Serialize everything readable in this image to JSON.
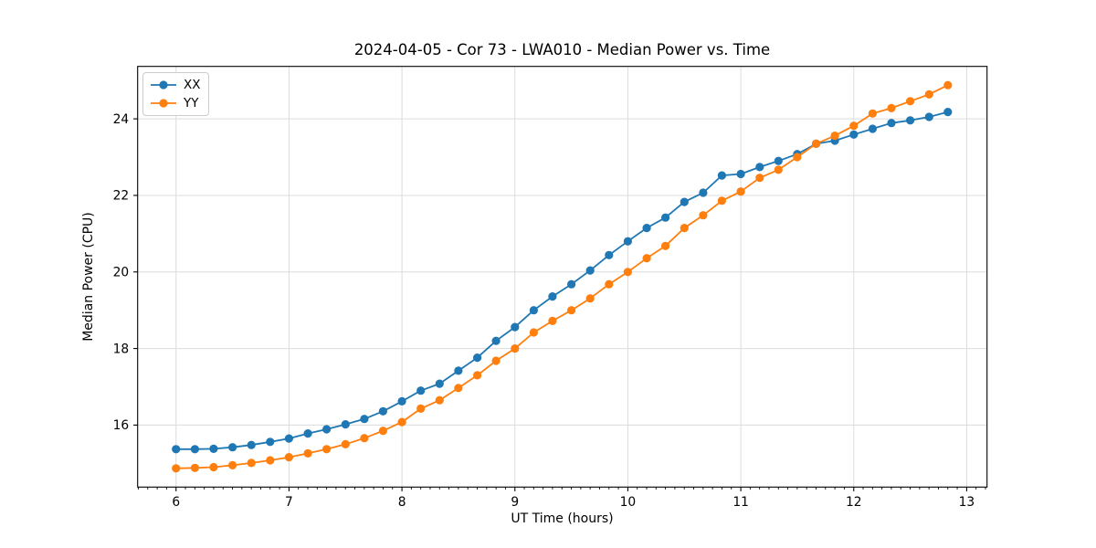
{
  "chart_data": {
    "type": "line",
    "title": "2024-04-05 - Cor 73 - LWA010 - Median Power vs. Time",
    "xlabel": "UT Time (hours)",
    "ylabel": "Median Power (CPU)",
    "xlim": [
      5.66,
      13.18
    ],
    "ylim": [
      14.38,
      25.37
    ],
    "x_ticks": [
      6,
      7,
      8,
      9,
      10,
      11,
      12,
      13
    ],
    "y_ticks": [
      16,
      18,
      20,
      22,
      24
    ],
    "x_minor_tick_step": 0.08333,
    "grid": true,
    "grid_color": "#dcdcdc",
    "spine_color": "#000000",
    "legend_position": "upper-left",
    "x": [
      6.0,
      6.167,
      6.333,
      6.5,
      6.667,
      6.833,
      7.0,
      7.167,
      7.333,
      7.5,
      7.667,
      7.833,
      8.0,
      8.167,
      8.333,
      8.5,
      8.667,
      8.833,
      9.0,
      9.167,
      9.333,
      9.5,
      9.667,
      9.833,
      10.0,
      10.167,
      10.333,
      10.5,
      10.667,
      10.833,
      11.0,
      11.167,
      11.333,
      11.5,
      11.667,
      11.833,
      12.0,
      12.167,
      12.333,
      12.5,
      12.667,
      12.833
    ],
    "series": [
      {
        "name": "XX",
        "color": "#1f77b4",
        "values": [
          15.37,
          15.37,
          15.38,
          15.42,
          15.48,
          15.56,
          15.65,
          15.78,
          15.89,
          16.02,
          16.16,
          16.36,
          16.62,
          16.9,
          17.08,
          17.42,
          17.76,
          18.2,
          18.56,
          19.0,
          19.36,
          19.68,
          20.04,
          20.44,
          20.8,
          21.15,
          21.42,
          21.83,
          22.07,
          22.52,
          22.56,
          22.74,
          22.9,
          23.08,
          23.35,
          23.43,
          23.59,
          23.74,
          23.89,
          23.96,
          24.05,
          24.18
        ]
      },
      {
        "name": "YY",
        "color": "#ff7f0e",
        "values": [
          14.87,
          14.88,
          14.9,
          14.95,
          15.01,
          15.08,
          15.16,
          15.26,
          15.37,
          15.5,
          15.66,
          15.85,
          16.08,
          16.43,
          16.65,
          16.97,
          17.3,
          17.68,
          18.0,
          18.42,
          18.72,
          19.0,
          19.31,
          19.68,
          20.0,
          20.36,
          20.68,
          21.15,
          21.48,
          21.86,
          22.1,
          22.46,
          22.67,
          23.0,
          23.35,
          23.56,
          23.82,
          24.14,
          24.28,
          24.46,
          24.64,
          24.88
        ]
      }
    ]
  }
}
